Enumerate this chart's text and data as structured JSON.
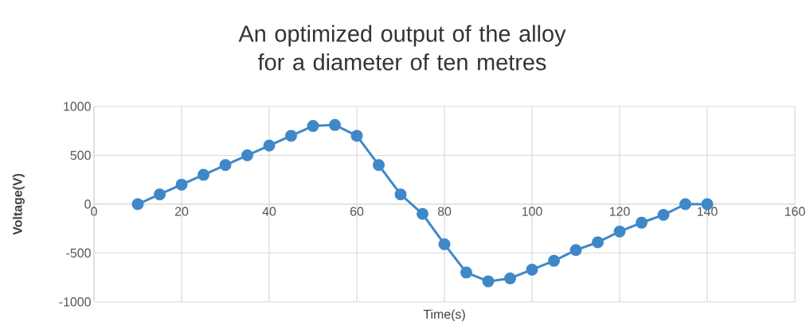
{
  "chart_data": {
    "type": "line",
    "title": "An optimized output of the alloy for a diameter of ten metres",
    "xlabel": "Time(s)",
    "ylabel": "Voltage(V)",
    "x": [
      10,
      15,
      20,
      25,
      30,
      35,
      40,
      45,
      50,
      55,
      60,
      65,
      70,
      75,
      80,
      85,
      90,
      95,
      100,
      105,
      110,
      115,
      120,
      125,
      130,
      135,
      140
    ],
    "series": [
      {
        "color": "#3f88c8",
        "values": [
          0,
          100,
          200,
          300,
          400,
          500,
          600,
          700,
          800,
          810,
          700,
          400,
          100,
          -100,
          -410,
          -700,
          -790,
          -760,
          -670,
          -580,
          -470,
          -390,
          -280,
          -190,
          -110,
          0,
          0
        ]
      }
    ],
    "xlim": [
      0,
      160
    ],
    "ylim": [
      -1000,
      1000
    ],
    "xticks": [
      0,
      20,
      40,
      60,
      80,
      100,
      120,
      140,
      160
    ],
    "yticks": [
      -1000,
      -500,
      0,
      500,
      1000
    ],
    "grid": true,
    "marker": "circle",
    "line_style": "solid"
  }
}
